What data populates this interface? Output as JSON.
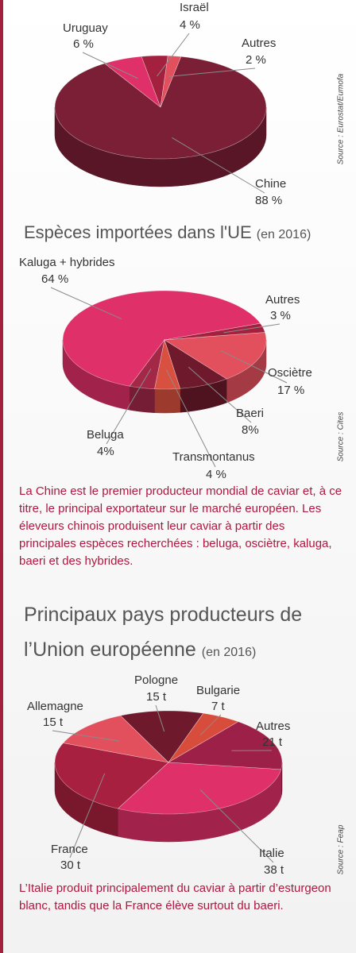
{
  "chart_data": [
    {
      "type": "pie",
      "source": "Source : Eurostat/Eumofa",
      "categories": [
        "Uruguay",
        "Israël",
        "Autres",
        "Chine"
      ],
      "values": [
        6,
        4,
        2,
        88
      ],
      "value_labels": [
        "6 %",
        "4 %",
        "2 %",
        "88 %"
      ],
      "colors": [
        "#e0306a",
        "#a3213f",
        "#e2505e",
        "#7a1f35"
      ]
    },
    {
      "type": "pie",
      "title": "Espèces importées dans l'UE",
      "subtitle": "(en 2016)",
      "source": "Source : Cites",
      "categories": [
        "Kaluga + hybrides",
        "Autres",
        "Osciètre",
        "Baeri",
        "Transmontanus",
        "Beluga"
      ],
      "values": [
        64,
        3,
        17,
        8,
        4,
        4
      ],
      "value_labels": [
        "64 %",
        "3 %",
        "17 %",
        "8%",
        "4 %",
        "4%"
      ],
      "colors": [
        "#e0306a",
        "#a3213f",
        "#e2505e",
        "#6e1a2c",
        "#d8503f",
        "#a32848"
      ]
    },
    {
      "type": "pie",
      "title": "Principaux pays producteurs de l’Union européenne",
      "subtitle": "(en 2016)",
      "source": "Source : Feap",
      "categories": [
        "Pologne",
        "Bulgarie",
        "Autres",
        "Italie",
        "France",
        "Allemagne"
      ],
      "values": [
        15,
        7,
        21,
        38,
        30,
        15
      ],
      "value_labels": [
        "15 t",
        "7 t",
        "21 t",
        "38 t",
        "30 t",
        "15 t"
      ],
      "colors": [
        "#6e1a2c",
        "#d84c3c",
        "#9c2048",
        "#e0306a",
        "#a8203f",
        "#e2505e"
      ]
    }
  ],
  "paragraphs": [
    "La Chine est le premier producteur mondial de caviar et, à ce titre, le principal exportateur sur le marché européen. Les éleveurs chinois produisent leur caviar à partir des principales espèces recherchées : beluga, osciètre, kaluga, baeri et des hybrides.",
    "L’Italie produit principalement du caviar à partir d’esturgeon blanc, tandis que la France élève surtout du baeri."
  ]
}
